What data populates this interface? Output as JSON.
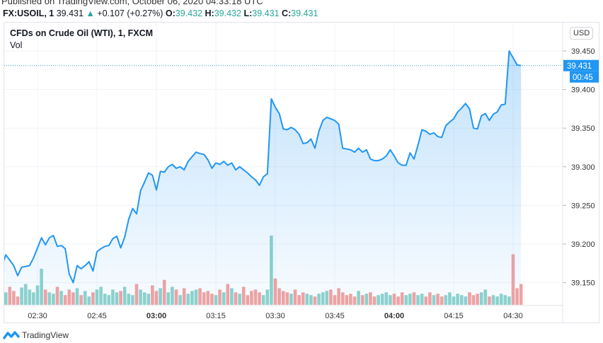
{
  "header": {
    "published": "Published on TradingView.com, October 06, 2020 04:33:18 UTC",
    "symbol": "FX:USOIL, 1",
    "last": "39.431",
    "arrow": "▲",
    "change": "+0.107 (+0.27%)",
    "o_label": "O:",
    "o": "39.432",
    "h_label": "H:",
    "h": "39.432",
    "l_label": "L:",
    "l": "39.431",
    "c_label": "C:",
    "c": "39.431"
  },
  "legend": {
    "title": "CFDs on Crude Oil (WTI), 1, FXCM",
    "vol": "Vol"
  },
  "currency": "USD",
  "last_price_label": "39.431",
  "countdown": "00:45",
  "brand": "TradingView",
  "colors": {
    "line": "#2196f3",
    "up": "#26a69a",
    "down": "#ef5350",
    "vol_up": "#8fd3cc",
    "vol_down": "#f4a3a1"
  },
  "chart_data": {
    "type": "area",
    "start_time": "02:20",
    "interval_minutes": 1,
    "ylim": [
      39.13,
      39.47
    ],
    "y_ticks": [
      "39.450",
      "39.400",
      "39.350",
      "39.300",
      "39.250",
      "39.200",
      "39.150"
    ],
    "x_ticks": [
      "02:30",
      "02:45",
      "03:00",
      "03:15",
      "03:30",
      "03:45",
      "04:00",
      "04:15",
      "04:30"
    ],
    "close": [
      39.17,
      39.171,
      39.186,
      39.179,
      39.172,
      39.159,
      39.17,
      39.171,
      39.172,
      39.182,
      39.195,
      39.208,
      39.199,
      39.208,
      39.211,
      39.197,
      39.198,
      39.194,
      39.161,
      39.15,
      39.172,
      39.168,
      39.172,
      39.177,
      39.165,
      39.19,
      39.194,
      39.197,
      39.198,
      39.207,
      39.21,
      39.195,
      39.209,
      39.232,
      39.246,
      39.239,
      39.269,
      39.28,
      39.292,
      39.289,
      39.27,
      39.294,
      39.293,
      39.3,
      39.303,
      39.298,
      39.3,
      39.296,
      39.307,
      39.313,
      39.319,
      39.317,
      39.316,
      39.309,
      39.298,
      39.305,
      39.303,
      39.307,
      39.302,
      39.305,
      39.296,
      39.3,
      39.296,
      39.292,
      39.287,
      39.283,
      39.276,
      39.287,
      39.291,
      39.388,
      39.377,
      39.369,
      39.349,
      39.348,
      39.351,
      39.348,
      39.342,
      39.33,
      39.331,
      39.336,
      39.324,
      39.346,
      39.36,
      39.364,
      39.362,
      39.36,
      39.355,
      39.324,
      39.323,
      39.322,
      39.319,
      39.324,
      39.319,
      39.322,
      39.31,
      39.308,
      39.308,
      39.31,
      39.314,
      39.322,
      39.314,
      39.305,
      39.302,
      39.302,
      39.318,
      39.31,
      39.328,
      39.348,
      39.346,
      39.342,
      39.344,
      39.339,
      39.338,
      39.353,
      39.358,
      39.362,
      39.371,
      39.376,
      39.382,
      39.375,
      39.35,
      39.349,
      39.366,
      39.369,
      39.36,
      39.368,
      39.371,
      39.38,
      39.381,
      39.45,
      39.441,
      39.432,
      39.431
    ],
    "volume_relative": [
      22,
      30,
      18,
      26,
      20,
      12,
      25,
      30,
      22,
      18,
      28,
      52,
      22,
      18,
      16,
      26,
      20,
      14,
      22,
      18,
      24,
      14,
      20,
      12,
      18,
      22,
      26,
      16,
      14,
      22,
      18,
      20,
      26,
      16,
      14,
      30,
      22,
      18,
      16,
      28,
      20,
      24,
      36,
      18,
      26,
      22,
      14,
      24,
      16,
      20,
      22,
      24,
      18,
      20,
      16,
      14,
      22,
      18,
      30,
      24,
      18,
      16,
      26,
      14,
      20,
      22,
      18,
      14,
      22,
      100,
      38,
      24,
      20,
      18,
      16,
      22,
      14,
      18,
      16,
      14,
      12,
      16,
      18,
      20,
      22,
      14,
      24,
      18,
      14,
      16,
      12,
      20,
      14,
      16,
      18,
      12,
      14,
      16,
      18,
      14,
      16,
      12,
      18,
      14,
      16,
      18,
      14,
      16,
      12,
      18,
      14,
      16,
      12,
      14,
      18,
      12,
      16,
      14,
      12,
      18,
      14,
      16,
      18,
      22,
      12,
      14,
      12,
      16,
      14,
      12,
      73,
      24,
      30
    ],
    "grid": true,
    "legend": "top-left"
  }
}
